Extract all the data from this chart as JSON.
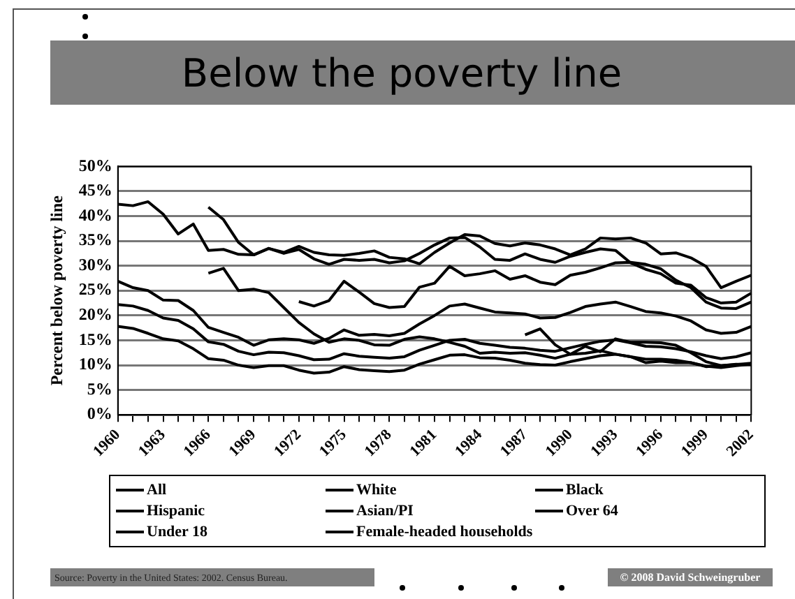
{
  "chart_data": {
    "type": "line",
    "title": "Below the poverty line",
    "ylabel": "Percent below poverty line",
    "categories": [
      "1960",
      null,
      null,
      "1963",
      null,
      null,
      "1966",
      null,
      null,
      "1969",
      null,
      null,
      "1972",
      null,
      null,
      "1975",
      null,
      null,
      "1978",
      null,
      null,
      "1981",
      null,
      null,
      "1984",
      null,
      null,
      "1987",
      null,
      null,
      "1990",
      null,
      null,
      "1993",
      null,
      null,
      "1996",
      null,
      null,
      "1999",
      null,
      null,
      "2002"
    ],
    "series": [
      {
        "name": "All",
        "color": "#000000",
        "values": [
          22.2,
          21.9,
          21.0,
          19.5,
          19.0,
          17.3,
          14.7,
          14.2,
          12.8,
          12.1,
          12.6,
          12.5,
          11.9,
          11.1,
          11.2,
          12.3,
          11.8,
          11.6,
          11.4,
          11.7,
          13.0,
          14.0,
          15.0,
          15.2,
          14.4,
          14.0,
          13.6,
          13.4,
          13.0,
          12.8,
          13.5,
          14.2,
          14.8,
          15.1,
          14.5,
          13.8,
          13.7,
          13.3,
          12.7,
          11.9,
          11.3,
          11.7,
          12.5
        ]
      },
      {
        "name": "White",
        "color": "#000000",
        "values": [
          17.8,
          17.4,
          16.4,
          15.3,
          14.9,
          13.3,
          11.3,
          11.0,
          10.0,
          9.5,
          9.9,
          9.9,
          9.0,
          8.4,
          8.6,
          9.7,
          9.1,
          8.9,
          8.7,
          9.0,
          10.2,
          11.1,
          12.0,
          12.1,
          11.5,
          11.4,
          11.0,
          10.4,
          10.1,
          10.0,
          10.7,
          11.3,
          11.9,
          12.2,
          11.7,
          11.2,
          11.2,
          11.0,
          10.5,
          9.8,
          9.5,
          9.9,
          10.2
        ]
      },
      {
        "name": "Black",
        "color": "#000000",
        "values": [
          null,
          null,
          null,
          null,
          null,
          null,
          41.8,
          39.3,
          34.7,
          32.2,
          33.5,
          32.5,
          33.3,
          31.4,
          30.3,
          31.3,
          31.1,
          31.3,
          30.6,
          31.0,
          32.5,
          34.2,
          35.6,
          35.7,
          33.8,
          31.3,
          31.1,
          32.4,
          31.3,
          30.7,
          31.9,
          32.7,
          33.4,
          33.1,
          30.6,
          29.3,
          28.4,
          26.5,
          26.1,
          23.6,
          22.5,
          22.7,
          24.5
        ]
      },
      {
        "name": "Hispanic",
        "color": "#000000",
        "values": [
          null,
          null,
          null,
          null,
          null,
          null,
          null,
          null,
          null,
          null,
          null,
          null,
          22.8,
          21.9,
          23.0,
          26.9,
          24.7,
          22.4,
          21.6,
          21.8,
          25.7,
          26.5,
          29.9,
          28.0,
          28.4,
          29.0,
          27.3,
          28.0,
          26.7,
          26.2,
          28.1,
          28.7,
          29.6,
          30.6,
          30.7,
          30.3,
          29.4,
          27.1,
          25.6,
          22.7,
          21.5,
          21.4,
          22.7
        ]
      },
      {
        "name": "Asian/PI",
        "color": "#000000",
        "values": [
          null,
          null,
          null,
          null,
          null,
          null,
          null,
          null,
          null,
          null,
          null,
          null,
          null,
          null,
          null,
          null,
          null,
          null,
          null,
          null,
          null,
          null,
          null,
          null,
          null,
          null,
          null,
          16.1,
          17.3,
          14.1,
          12.2,
          13.8,
          12.7,
          15.3,
          14.6,
          14.6,
          14.5,
          14.0,
          12.5,
          10.7,
          9.9,
          10.2,
          10.1
        ]
      },
      {
        "name": "Over 64",
        "color": "#000000",
        "values": [
          null,
          null,
          null,
          null,
          null,
          null,
          28.5,
          29.5,
          25.0,
          25.3,
          24.6,
          21.6,
          18.6,
          16.3,
          14.6,
          15.3,
          15.0,
          14.1,
          14.0,
          15.2,
          15.7,
          15.3,
          14.6,
          13.8,
          12.4,
          12.6,
          12.4,
          12.5,
          12.0,
          11.4,
          12.2,
          12.4,
          12.9,
          12.2,
          11.7,
          10.5,
          10.8,
          10.5,
          10.5,
          9.7,
          9.9,
          10.1,
          10.4
        ]
      },
      {
        "name": "Under 18",
        "color": "#000000",
        "values": [
          26.9,
          25.6,
          25.0,
          23.1,
          23.0,
          21.0,
          17.6,
          16.6,
          15.6,
          14.0,
          15.1,
          15.3,
          15.1,
          14.4,
          15.4,
          17.1,
          16.0,
          16.2,
          15.9,
          16.4,
          18.3,
          20.0,
          21.9,
          22.3,
          21.5,
          20.7,
          20.5,
          20.3,
          19.5,
          19.6,
          20.6,
          21.8,
          22.3,
          22.7,
          21.8,
          20.8,
          20.5,
          19.9,
          18.9,
          17.1,
          16.4,
          16.6,
          17.8
        ]
      },
      {
        "name": "Female-headed households",
        "color": "#000000",
        "values": [
          42.4,
          42.1,
          42.9,
          40.4,
          36.4,
          38.4,
          33.1,
          33.3,
          32.3,
          32.2,
          33.5,
          32.7,
          33.9,
          32.7,
          32.2,
          32.1,
          32.5,
          33.0,
          31.7,
          31.4,
          30.4,
          32.7,
          34.6,
          36.3,
          36.0,
          34.5,
          34.0,
          34.6,
          34.2,
          33.4,
          32.2,
          33.4,
          35.6,
          35.4,
          35.6,
          34.6,
          32.4,
          32.6,
          31.6,
          29.9,
          25.6,
          26.9,
          28.1
        ]
      }
    ],
    "ylim": [
      0,
      50
    ],
    "yticks": [
      {
        "value": 0,
        "label": "0%"
      },
      {
        "value": 5,
        "label": "5%"
      },
      {
        "value": 10,
        "label": "10%"
      },
      {
        "value": 15,
        "label": "15%"
      },
      {
        "value": 20,
        "label": "20%"
      },
      {
        "value": 25,
        "label": "25%"
      },
      {
        "value": 30,
        "label": "30%"
      },
      {
        "value": 35,
        "label": "35%"
      },
      {
        "value": 40,
        "label": "40%"
      },
      {
        "value": 45,
        "label": "45%"
      },
      {
        "value": 50,
        "label": "50%"
      }
    ],
    "grid": "y",
    "legend": "bottom",
    "marker": "none",
    "line_style": "solid",
    "annotations": [
      "Source: Poverty in the United States: 2002. Census Bureau.",
      "© 2008 David Schweingruber"
    ]
  }
}
